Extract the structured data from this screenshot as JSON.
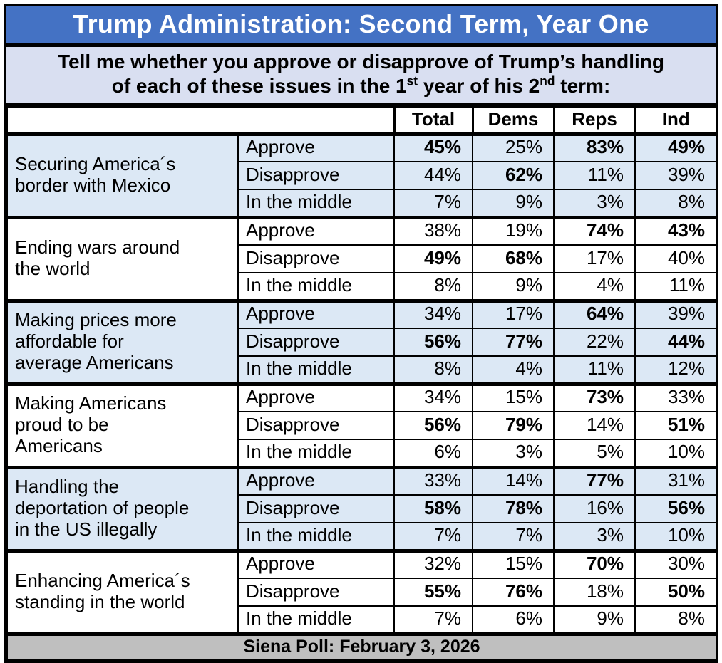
{
  "title": "Trump Administration: Second Term, Year One",
  "subtitle": {
    "line1": "Tell me whether you approve or disapprove of Trump’s handling",
    "line2_part1": "of each of these issues in the 1",
    "line2_sup1": "st",
    "line2_part2": " year of his 2",
    "line2_sup2": "nd",
    "line2_part3": " term:"
  },
  "table": {
    "columns": [
      "Total",
      "Dems",
      "Reps",
      "Ind"
    ],
    "groups": [
      {
        "shaded": true,
        "issue_lines": [
          "Securing America´s",
          "border with Mexico"
        ],
        "rows": [
          {
            "label": "Approve",
            "values": [
              {
                "v": "45%",
                "bold": true
              },
              {
                "v": "25%",
                "bold": false
              },
              {
                "v": "83%",
                "bold": true
              },
              {
                "v": "49%",
                "bold": true
              }
            ]
          },
          {
            "label": "Disapprove",
            "values": [
              {
                "v": "44%",
                "bold": false
              },
              {
                "v": "62%",
                "bold": true
              },
              {
                "v": "11%",
                "bold": false
              },
              {
                "v": "39%",
                "bold": false
              }
            ]
          },
          {
            "label": "In the middle",
            "values": [
              {
                "v": "7%",
                "bold": false
              },
              {
                "v": "9%",
                "bold": false
              },
              {
                "v": "3%",
                "bold": false
              },
              {
                "v": "8%",
                "bold": false
              }
            ]
          }
        ]
      },
      {
        "shaded": false,
        "issue_lines": [
          "Ending wars around",
          "the world"
        ],
        "rows": [
          {
            "label": "Approve",
            "values": [
              {
                "v": "38%",
                "bold": false
              },
              {
                "v": "19%",
                "bold": false
              },
              {
                "v": "74%",
                "bold": true
              },
              {
                "v": "43%",
                "bold": true
              }
            ]
          },
          {
            "label": "Disapprove",
            "values": [
              {
                "v": "49%",
                "bold": true
              },
              {
                "v": "68%",
                "bold": true
              },
              {
                "v": "17%",
                "bold": false
              },
              {
                "v": "40%",
                "bold": false
              }
            ]
          },
          {
            "label": "In the middle",
            "values": [
              {
                "v": "8%",
                "bold": false
              },
              {
                "v": "9%",
                "bold": false
              },
              {
                "v": "4%",
                "bold": false
              },
              {
                "v": "11%",
                "bold": false
              }
            ]
          }
        ]
      },
      {
        "shaded": true,
        "issue_lines": [
          "Making prices more",
          "affordable for",
          "average Americans"
        ],
        "rows": [
          {
            "label": "Approve",
            "values": [
              {
                "v": "34%",
                "bold": false
              },
              {
                "v": "17%",
                "bold": false
              },
              {
                "v": "64%",
                "bold": true
              },
              {
                "v": "39%",
                "bold": false
              }
            ]
          },
          {
            "label": "Disapprove",
            "values": [
              {
                "v": "56%",
                "bold": true
              },
              {
                "v": "77%",
                "bold": true
              },
              {
                "v": "22%",
                "bold": false
              },
              {
                "v": "44%",
                "bold": true
              }
            ]
          },
          {
            "label": "In the middle",
            "values": [
              {
                "v": "8%",
                "bold": false
              },
              {
                "v": "4%",
                "bold": false
              },
              {
                "v": "11%",
                "bold": false
              },
              {
                "v": "12%",
                "bold": false
              }
            ]
          }
        ]
      },
      {
        "shaded": false,
        "issue_lines": [
          "Making Americans",
          "proud to be",
          "Americans"
        ],
        "rows": [
          {
            "label": "Approve",
            "values": [
              {
                "v": "34%",
                "bold": false
              },
              {
                "v": "15%",
                "bold": false
              },
              {
                "v": "73%",
                "bold": true
              },
              {
                "v": "33%",
                "bold": false
              }
            ]
          },
          {
            "label": "Disapprove",
            "values": [
              {
                "v": "56%",
                "bold": true
              },
              {
                "v": "79%",
                "bold": true
              },
              {
                "v": "14%",
                "bold": false
              },
              {
                "v": "51%",
                "bold": true
              }
            ]
          },
          {
            "label": "In the middle",
            "values": [
              {
                "v": "6%",
                "bold": false
              },
              {
                "v": "3%",
                "bold": false
              },
              {
                "v": "5%",
                "bold": false
              },
              {
                "v": "10%",
                "bold": false
              }
            ]
          }
        ]
      },
      {
        "shaded": true,
        "issue_lines": [
          "Handling the",
          "deportation of people",
          "in the US illegally"
        ],
        "rows": [
          {
            "label": "Approve",
            "values": [
              {
                "v": "33%",
                "bold": false
              },
              {
                "v": "14%",
                "bold": false
              },
              {
                "v": "77%",
                "bold": true
              },
              {
                "v": "31%",
                "bold": false
              }
            ]
          },
          {
            "label": "Disapprove",
            "values": [
              {
                "v": "58%",
                "bold": true
              },
              {
                "v": "78%",
                "bold": true
              },
              {
                "v": "16%",
                "bold": false
              },
              {
                "v": "56%",
                "bold": true
              }
            ]
          },
          {
            "label": "In the middle",
            "values": [
              {
                "v": "7%",
                "bold": false
              },
              {
                "v": "7%",
                "bold": false
              },
              {
                "v": "3%",
                "bold": false
              },
              {
                "v": "10%",
                "bold": false
              }
            ]
          }
        ]
      },
      {
        "shaded": false,
        "issue_lines": [
          "Enhancing America´s",
          "standing in the world"
        ],
        "rows": [
          {
            "label": "Approve",
            "values": [
              {
                "v": "32%",
                "bold": false
              },
              {
                "v": "15%",
                "bold": false
              },
              {
                "v": "70%",
                "bold": true
              },
              {
                "v": "30%",
                "bold": false
              }
            ]
          },
          {
            "label": "Disapprove",
            "values": [
              {
                "v": "55%",
                "bold": true
              },
              {
                "v": "76%",
                "bold": true
              },
              {
                "v": "18%",
                "bold": false
              },
              {
                "v": "50%",
                "bold": true
              }
            ]
          },
          {
            "label": "In the middle",
            "values": [
              {
                "v": "7%",
                "bold": false
              },
              {
                "v": "6%",
                "bold": false
              },
              {
                "v": "9%",
                "bold": false
              },
              {
                "v": "8%",
                "bold": false
              }
            ]
          }
        ]
      }
    ]
  },
  "footer": "Siena Poll: February 3, 2026",
  "colors": {
    "title_bar_bg": "#4472C4",
    "title_text": "#FFFFFF",
    "subtitle_bg": "#D9DFF1",
    "shaded_row_bg": "#DCE8F5",
    "footer_bg": "#BFBFBF",
    "border": "#000000"
  },
  "chart_data": {
    "type": "table",
    "title": "Trump Administration: Second Term, Year One",
    "subtitle": "Tell me whether you approve or disapprove of Trump’s handling of each of these issues in the 1st year of his 2nd term:",
    "columns": [
      "Total",
      "Dems",
      "Reps",
      "Ind"
    ],
    "units": "percent",
    "issues": [
      {
        "issue": "Securing America´s border with Mexico",
        "Approve": [
          45,
          25,
          83,
          49
        ],
        "Disapprove": [
          44,
          62,
          11,
          39
        ],
        "In the middle": [
          7,
          9,
          3,
          8
        ]
      },
      {
        "issue": "Ending wars around the world",
        "Approve": [
          38,
          19,
          74,
          43
        ],
        "Disapprove": [
          49,
          68,
          17,
          40
        ],
        "In the middle": [
          8,
          9,
          4,
          11
        ]
      },
      {
        "issue": "Making prices more affordable for average Americans",
        "Approve": [
          34,
          17,
          64,
          39
        ],
        "Disapprove": [
          56,
          77,
          22,
          44
        ],
        "In the middle": [
          8,
          4,
          11,
          12
        ]
      },
      {
        "issue": "Making Americans proud to be Americans",
        "Approve": [
          34,
          15,
          73,
          33
        ],
        "Disapprove": [
          56,
          79,
          14,
          51
        ],
        "In the middle": [
          6,
          3,
          5,
          10
        ]
      },
      {
        "issue": "Handling the deportation of people in the US illegally",
        "Approve": [
          33,
          14,
          77,
          31
        ],
        "Disapprove": [
          58,
          78,
          16,
          56
        ],
        "In the middle": [
          7,
          7,
          3,
          10
        ]
      },
      {
        "issue": "Enhancing America´s standing in the world",
        "Approve": [
          32,
          15,
          70,
          30
        ],
        "Disapprove": [
          55,
          76,
          18,
          50
        ],
        "In the middle": [
          7,
          6,
          9,
          8
        ]
      }
    ],
    "source": "Siena Poll: February 3, 2026"
  }
}
